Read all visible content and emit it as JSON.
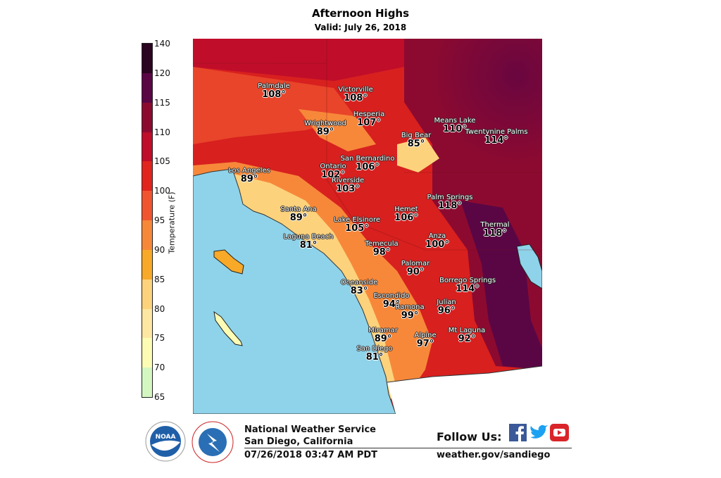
{
  "header": {
    "title": "Afternoon Highs",
    "subtitle": "Valid: July 26, 2018"
  },
  "colorbar": {
    "label": "Temperature (F)",
    "ticks": [
      "140",
      "120",
      "115",
      "110",
      "105",
      "100",
      "95",
      "90",
      "85",
      "80",
      "75",
      "70",
      "65"
    ],
    "bins": [
      {
        "from": 120,
        "to": 140,
        "color": "#2a0420"
      },
      {
        "from": 115,
        "to": 120,
        "color": "#5a0645"
      },
      {
        "from": 110,
        "to": 115,
        "color": "#8c0a30"
      },
      {
        "from": 105,
        "to": 110,
        "color": "#c00d2a"
      },
      {
        "from": 100,
        "to": 105,
        "color": "#e2241e"
      },
      {
        "from": 95,
        "to": 100,
        "color": "#f15530"
      },
      {
        "from": 90,
        "to": 95,
        "color": "#f7883a"
      },
      {
        "from": 85,
        "to": 90,
        "color": "#f8a928"
      },
      {
        "from": 80,
        "to": 85,
        "color": "#fdd27c"
      },
      {
        "from": 75,
        "to": 80,
        "color": "#fde7a2"
      },
      {
        "from": 70,
        "to": 75,
        "color": "#fdfcb4"
      },
      {
        "from": 65,
        "to": 70,
        "color": "#d4f7c2"
      }
    ]
  },
  "map": {
    "ocean_color": "#8ed3ea"
  },
  "cities": [
    {
      "name": "Palmdale",
      "value": "108°"
    },
    {
      "name": "Victorville",
      "value": "108°"
    },
    {
      "name": "Hesperia",
      "value": "107°"
    },
    {
      "name": "Wrightwood",
      "value": "89°"
    },
    {
      "name": "Means Lake",
      "value": "110°"
    },
    {
      "name": "Twentynine Palms",
      "value": "114°"
    },
    {
      "name": "Big Bear",
      "value": "85°"
    },
    {
      "name": "San Bernardino",
      "value": "106°"
    },
    {
      "name": "Ontario",
      "value": "102°"
    },
    {
      "name": "Los Angeles",
      "value": "89°"
    },
    {
      "name": "Riverside",
      "value": "103°"
    },
    {
      "name": "Palm Springs",
      "value": "118°"
    },
    {
      "name": "Santa Ana",
      "value": "89°"
    },
    {
      "name": "Hemet",
      "value": "106°"
    },
    {
      "name": "Lake Elsinore",
      "value": "105°"
    },
    {
      "name": "Thermal",
      "value": "118°"
    },
    {
      "name": "Laguna Beach",
      "value": "81°"
    },
    {
      "name": "Temecula",
      "value": "98°"
    },
    {
      "name": "Anza",
      "value": "100°"
    },
    {
      "name": "Palomar",
      "value": "90°"
    },
    {
      "name": "Oceanside",
      "value": "83°"
    },
    {
      "name": "Borrego Springs",
      "value": "114°"
    },
    {
      "name": "Escondido",
      "value": "94°"
    },
    {
      "name": "Julian",
      "value": "96°"
    },
    {
      "name": "Ramona",
      "value": "99°"
    },
    {
      "name": "Miramar",
      "value": "89°"
    },
    {
      "name": "Mt Laguna",
      "value": "92°"
    },
    {
      "name": "Alpine",
      "value": "97°"
    },
    {
      "name": "San Diego",
      "value": "81°"
    }
  ],
  "footer": {
    "org": "National Weather Service",
    "office": "San Diego, California",
    "issued": "07/26/2018 03:47 AM PDT",
    "follow": "Follow Us:",
    "website": "weather.gov/sandiego",
    "noaa_logo_text": "NOAA",
    "nws_logo_text": "NATIONAL WEATHER SERVICE",
    "social_icons": [
      "facebook-icon",
      "twitter-icon",
      "youtube-icon"
    ],
    "facebook_color": "#3b5998",
    "twitter_color": "#1da1f2",
    "youtube_color": "#d9252a"
  }
}
